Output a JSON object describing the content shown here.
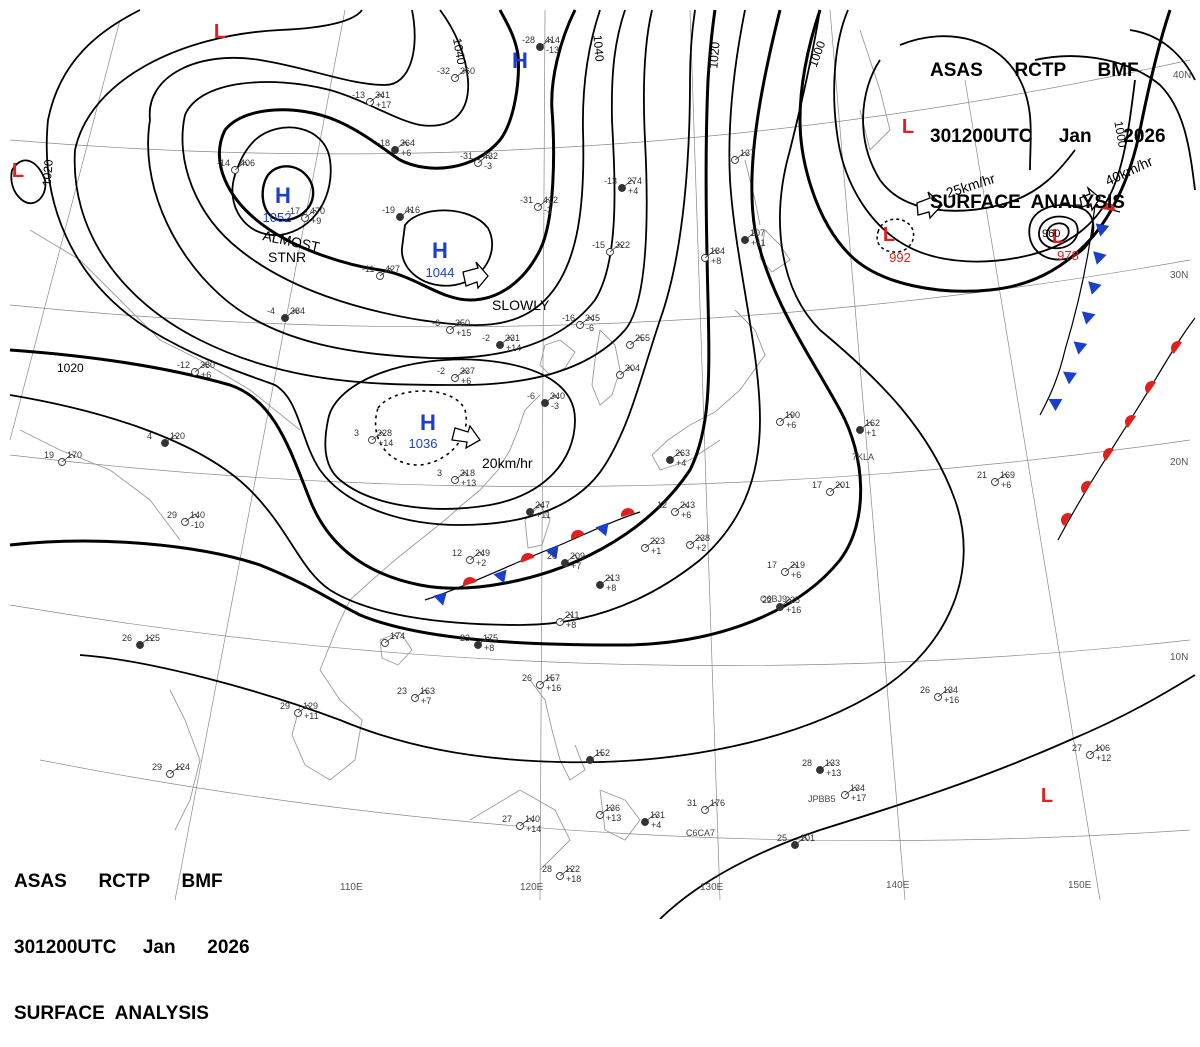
{
  "header": {
    "line1": "ASAS      RCTP      BMF",
    "line2": "301200UTC     Jan      2026",
    "line3": "SURFACE  ANALYSIS"
  },
  "pressure_centers": [
    {
      "type": "H",
      "value": "1052",
      "color": "#1a3fcc"
    },
    {
      "type": "H",
      "value": "1044",
      "color": "#1a3fcc"
    },
    {
      "type": "H",
      "value": "1036",
      "color": "#1a3fcc"
    },
    {
      "type": "H",
      "value": "",
      "color": "#1a3fcc"
    },
    {
      "type": "L",
      "value": "992",
      "color": "#e0201c"
    },
    {
      "type": "L",
      "value": "978",
      "color": "#e0201c"
    },
    {
      "type": "L",
      "value": "",
      "color": "#e0201c"
    },
    {
      "type": "L",
      "value": "",
      "color": "#e0201c"
    },
    {
      "type": "L",
      "value": "",
      "color": "#e0201c"
    },
    {
      "type": "L",
      "value": "",
      "color": "#e0201c"
    }
  ],
  "movement_labels": {
    "almost": "ALMOST",
    "stnr": "STNR",
    "slowly": "SLOWLY",
    "speed_20": "20km/hr",
    "speed_25": "25km/hr",
    "speed_40": "40km/hr"
  },
  "isobar_labels": {
    "i1040_a": "1040",
    "i1040_b": "1040",
    "i1020_a": "1020",
    "i1020_b": "1020",
    "i1020_c": "1020",
    "i1000_a": "1000",
    "i1000_b": "1000",
    "i960": "960"
  },
  "latitude_labels": {
    "lat30": "30N",
    "lat20": "20N",
    "lat10": "10N",
    "lat40": "40N"
  },
  "longitude_labels": {
    "lon110": "110E",
    "lon120": "120E",
    "lon130": "130E",
    "lon140": "140E",
    "lon150": "150E"
  },
  "stations": [
    {
      "pressure": "414",
      "temp": "-28",
      "tend": "-13"
    },
    {
      "pressure": "360",
      "temp": "-32",
      "tend": ""
    },
    {
      "pressure": "341",
      "temp": "-13",
      "tend": "+17"
    },
    {
      "pressure": "364",
      "temp": "-18",
      "tend": "+6"
    },
    {
      "pressure": "432",
      "temp": "-31",
      "tend": "-3"
    },
    {
      "pressure": "412",
      "temp": "-31",
      "tend": "-3"
    },
    {
      "pressure": "274",
      "temp": "-13",
      "tend": "+4"
    },
    {
      "pressure": "406",
      "temp": "-14",
      "tend": ""
    },
    {
      "pressure": "470",
      "temp": "-17",
      "tend": "+9"
    },
    {
      "pressure": "416",
      "temp": "-19",
      "tend": ""
    },
    {
      "pressure": "427",
      "temp": "-11",
      "tend": ""
    },
    {
      "pressure": "322",
      "temp": "-15",
      "tend": ""
    },
    {
      "pressure": "384",
      "temp": "-4",
      "tend": ""
    },
    {
      "pressure": "350",
      "temp": "-6",
      "tend": "+15"
    },
    {
      "pressure": "345",
      "temp": "-16",
      "tend": "-6"
    },
    {
      "pressure": "331",
      "temp": "-2",
      "tend": "+14"
    },
    {
      "pressure": "380",
      "temp": "-12",
      "tend": "+6"
    },
    {
      "pressure": "337",
      "temp": "-2",
      "tend": "+6"
    },
    {
      "pressure": "340",
      "temp": "-6",
      "tend": "-3"
    },
    {
      "pressure": "328",
      "temp": "3",
      "tend": "+14"
    },
    {
      "pressure": "318",
      "temp": "3",
      "tend": "+13"
    },
    {
      "pressure": "120",
      "temp": "4",
      "tend": ""
    },
    {
      "pressure": "170",
      "temp": "19",
      "tend": ""
    },
    {
      "pressure": "140",
      "temp": "29",
      "tend": "-10"
    },
    {
      "pressure": "125",
      "temp": "26",
      "tend": ""
    },
    {
      "pressure": "129",
      "temp": "29",
      "tend": "+11"
    },
    {
      "pressure": "124",
      "temp": "29",
      "tend": ""
    },
    {
      "pressure": "247",
      "temp": "",
      "tend": "+11"
    },
    {
      "pressure": "243",
      "temp": "12",
      "tend": "+6"
    },
    {
      "pressure": "249",
      "temp": "12",
      "tend": "+2"
    },
    {
      "pressure": "209",
      "temp": "20",
      "tend": "+7"
    },
    {
      "pressure": "223",
      "temp": "",
      "tend": "+1"
    },
    {
      "pressure": "238",
      "temp": "",
      "tend": "+2"
    },
    {
      "pressure": "213",
      "temp": "",
      "tend": "+8"
    },
    {
      "pressure": "211",
      "temp": "",
      "tend": "+8"
    },
    {
      "pressure": "174",
      "temp": "",
      "tend": ""
    },
    {
      "pressure": "175",
      "temp": "23",
      "tend": "+8"
    },
    {
      "pressure": "163",
      "temp": "23",
      "tend": "+7"
    },
    {
      "pressure": "157",
      "temp": "26",
      "tend": "+16"
    },
    {
      "pressure": "152",
      "temp": "",
      "tend": ""
    },
    {
      "pressure": "140",
      "temp": "27",
      "tend": "+14"
    },
    {
      "pressure": "136",
      "temp": "",
      "tend": "+13"
    },
    {
      "pressure": "131",
      "temp": "",
      "tend": "+4"
    },
    {
      "pressure": "122",
      "temp": "28",
      "tend": "+18"
    },
    {
      "pressure": "219",
      "temp": "17",
      "tend": "+6"
    },
    {
      "pressure": "225",
      "temp": "22",
      "tend": "+16"
    },
    {
      "pressure": "201",
      "temp": "17",
      "tend": ""
    },
    {
      "pressure": "190",
      "temp": "",
      "tend": "+6"
    },
    {
      "pressure": "162",
      "temp": "",
      "tend": "+1"
    },
    {
      "pressure": "169",
      "temp": "21",
      "tend": "+6"
    },
    {
      "pressure": "134",
      "temp": "26",
      "tend": "+16"
    },
    {
      "pressure": "133",
      "temp": "28",
      "tend": "+13"
    },
    {
      "pressure": "134",
      "temp": "",
      "tend": "+17"
    },
    {
      "pressure": "176",
      "temp": "31",
      "tend": ""
    },
    {
      "pressure": "101",
      "temp": "25",
      "tend": ""
    },
    {
      "pressure": "106",
      "temp": "27",
      "tend": "+12"
    },
    {
      "pressure": "184",
      "temp": "",
      "tend": "+8"
    },
    {
      "pressure": "263",
      "temp": "",
      "tend": "+4"
    },
    {
      "pressure": "304",
      "temp": "",
      "tend": ""
    },
    {
      "pressure": "255",
      "temp": "",
      "tend": ""
    },
    {
      "pressure": "107",
      "temp": "",
      "tend": "+11"
    },
    {
      "pressure": "137",
      "temp": "",
      "tend": ""
    }
  ],
  "ship_callsigns": [
    "7KLA",
    "C6BJ9",
    "JPBB5",
    "C6CA7"
  ]
}
